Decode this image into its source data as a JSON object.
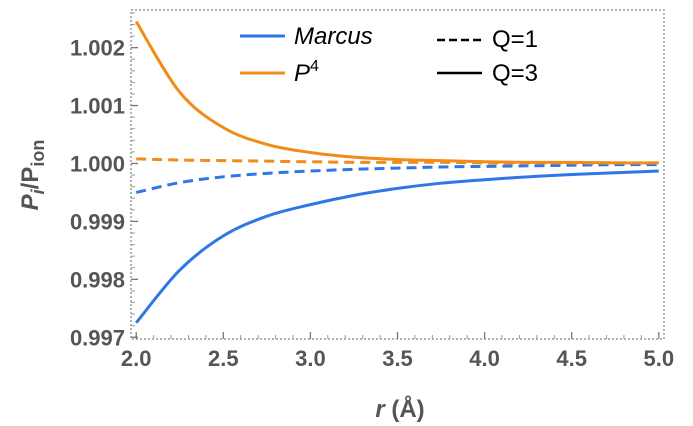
{
  "chart_data": {
    "type": "line",
    "title": "",
    "xlabel": {
      "var": "r",
      "unit": " (Å)"
    },
    "ylabel": {
      "main": "P",
      "sub_i": "i",
      "slash": "/P",
      "sub_ion": "ion"
    },
    "xlim": [
      1.97,
      5.03
    ],
    "ylim": [
      0.99697,
      1.00265
    ],
    "x_ticks": [
      2.0,
      2.5,
      3.0,
      3.5,
      4.0,
      4.5,
      5.0
    ],
    "x_tick_labels": [
      "2.0",
      "2.5",
      "3.0",
      "3.5",
      "4.0",
      "4.5",
      "5.0"
    ],
    "y_ticks": [
      0.997,
      0.998,
      0.999,
      1.0,
      1.001,
      1.002
    ],
    "y_tick_labels": [
      "0.997",
      "0.998",
      "0.999",
      "1.000",
      "1.001",
      "1.002"
    ],
    "grid": false,
    "legend": {
      "placement": "top",
      "models": [
        {
          "label": "Marcus",
          "color": "#2f76e6"
        },
        {
          "label": "P",
          "sup": "4",
          "color": "#f28c18"
        }
      ],
      "charges": [
        {
          "label": "Q=1",
          "dash": "dashed"
        },
        {
          "label": "Q=3",
          "dash": "solid"
        }
      ]
    },
    "x": [
      2.0,
      2.25,
      2.5,
      2.75,
      3.0,
      3.25,
      3.5,
      3.75,
      4.0,
      4.25,
      4.5,
      4.75,
      5.0
    ],
    "series": [
      {
        "model": "Marcus",
        "charge": "Q=3",
        "color": "#2f76e6",
        "dash": "solid",
        "values": [
          0.99725,
          0.99816,
          0.99875,
          0.99909,
          0.99929,
          0.99945,
          0.99957,
          0.99966,
          0.99972,
          0.99977,
          0.99981,
          0.99984,
          0.99987
        ]
      },
      {
        "model": "Marcus",
        "charge": "Q=1",
        "color": "#2f76e6",
        "dash": "dashed",
        "values": [
          0.9995,
          0.99967,
          0.99977,
          0.99983,
          0.99987,
          0.9999,
          0.99992,
          0.99994,
          0.99995,
          0.99996,
          0.99997,
          0.99998,
          0.99998
        ]
      },
      {
        "model": "P4",
        "charge": "Q=3",
        "color": "#f28c18",
        "dash": "solid",
        "values": [
          1.00245,
          1.00123,
          1.00062,
          1.00033,
          1.00019,
          1.00011,
          1.00007,
          1.00005,
          1.00003,
          1.00002,
          1.00002,
          1.00001,
          1.00001
        ]
      },
      {
        "model": "P4",
        "charge": "Q=1",
        "color": "#f28c18",
        "dash": "dashed",
        "values": [
          1.00008,
          1.00006,
          1.00005,
          1.00004,
          1.00003,
          1.00002,
          1.00002,
          1.00002,
          1.00001,
          1.00001,
          1.00001,
          1.00001,
          1.00001
        ]
      }
    ]
  }
}
